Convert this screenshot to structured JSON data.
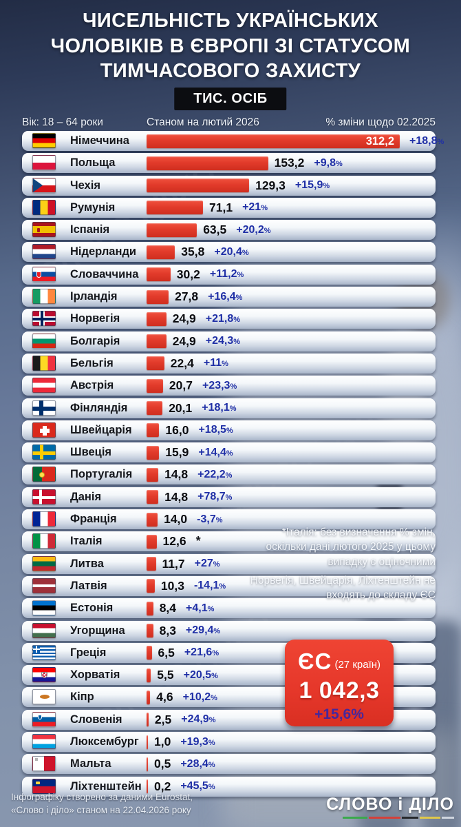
{
  "title": {
    "lines": [
      "ЧИСЕЛЬНІСТЬ УКРАЇНСЬКИХ",
      "ЧОЛОВІКІВ В ЄВРОПІ ЗІ СТАТУСОМ",
      "ТИМЧАСОВОГО ЗАХИСТУ"
    ]
  },
  "units_badge": "ТИС. ОСІБ",
  "column_headers": {
    "age": "Вік: 18 – 64 роки",
    "as_of": "Станом на лютий 2026",
    "change": "% зміни щодо 02.2025"
  },
  "chart_data": {
    "type": "bar",
    "orientation": "horizontal",
    "title": "Чисельність українських чоловіків в Європі зі статусом тимчасового захисту",
    "unit": "тис. осіб",
    "as_of": "лютий 2026",
    "change_vs": "02.2025",
    "rows": [
      {
        "country": "Німеччина",
        "flag": "germany",
        "value": 312.2,
        "value_label": "312,2",
        "change_label": "+18,8%",
        "value_inside": true
      },
      {
        "country": "Польща",
        "flag": "poland",
        "value": 153.2,
        "value_label": "153,2",
        "change_label": "+9,8%"
      },
      {
        "country": "Чехія",
        "flag": "czechia",
        "value": 129.3,
        "value_label": "129,3",
        "change_label": "+15,9%"
      },
      {
        "country": "Румунія",
        "flag": "romania",
        "value": 71.1,
        "value_label": "71,1",
        "change_label": "+21%"
      },
      {
        "country": "Іспанія",
        "flag": "spain",
        "value": 63.5,
        "value_label": "63,5",
        "change_label": "+20,2%"
      },
      {
        "country": "Нідерланди",
        "flag": "netherlands",
        "value": 35.8,
        "value_label": "35,8",
        "change_label": "+20,4%"
      },
      {
        "country": "Словаччина",
        "flag": "slovakia",
        "value": 30.2,
        "value_label": "30,2",
        "change_label": "+11,2%"
      },
      {
        "country": "Ірландія",
        "flag": "ireland",
        "value": 27.8,
        "value_label": "27,8",
        "change_label": "+16,4%"
      },
      {
        "country": "Норвегія",
        "flag": "norway",
        "value": 24.9,
        "value_label": "24,9",
        "change_label": "+21,8%"
      },
      {
        "country": "Болгарія",
        "flag": "bulgaria",
        "value": 24.9,
        "value_label": "24,9",
        "change_label": "+24,3%"
      },
      {
        "country": "Бельгія",
        "flag": "belgium",
        "value": 22.4,
        "value_label": "22,4",
        "change_label": "+11%"
      },
      {
        "country": "Австрія",
        "flag": "austria",
        "value": 20.7,
        "value_label": "20,7",
        "change_label": "+23,3%"
      },
      {
        "country": "Фінляндія",
        "flag": "finland",
        "value": 20.1,
        "value_label": "20,1",
        "change_label": "+18,1%"
      },
      {
        "country": "Швейцарія",
        "flag": "switzerland",
        "value": 16.0,
        "value_label": "16,0",
        "change_label": "+18,5%"
      },
      {
        "country": "Швеція",
        "flag": "sweden",
        "value": 15.9,
        "value_label": "15,9",
        "change_label": "+14,4%"
      },
      {
        "country": "Португалія",
        "flag": "portugal",
        "value": 14.8,
        "value_label": "14,8",
        "change_label": "+22,2%"
      },
      {
        "country": "Данія",
        "flag": "denmark",
        "value": 14.8,
        "value_label": "14,8",
        "change_label": "+78,7%"
      },
      {
        "country": "Франція",
        "flag": "france",
        "value": 14.0,
        "value_label": "14,0",
        "change_label": "-3,7%"
      },
      {
        "country": "Італія",
        "flag": "italy",
        "value": 12.6,
        "value_label": "12,6",
        "change_label": "*"
      },
      {
        "country": "Литва",
        "flag": "lithuania",
        "value": 11.7,
        "value_label": "11,7",
        "change_label": "+27%"
      },
      {
        "country": "Латвія",
        "flag": "latvia",
        "value": 10.3,
        "value_label": "10,3",
        "change_label": "-14,1%"
      },
      {
        "country": "Естонія",
        "flag": "estonia",
        "value": 8.4,
        "value_label": "8,4",
        "change_label": "+4,1%"
      },
      {
        "country": "Угорщина",
        "flag": "hungary",
        "value": 8.3,
        "value_label": "8,3",
        "change_label": "+29,4%"
      },
      {
        "country": "Греція",
        "flag": "greece",
        "value": 6.5,
        "value_label": "6,5",
        "change_label": "+21,6%"
      },
      {
        "country": "Хорватія",
        "flag": "croatia",
        "value": 5.5,
        "value_label": "5,5",
        "change_label": "+20,5%"
      },
      {
        "country": "Кіпр",
        "flag": "cyprus",
        "value": 4.6,
        "value_label": "4,6",
        "change_label": "+10,2%"
      },
      {
        "country": "Словенія",
        "flag": "slovenia",
        "value": 2.5,
        "value_label": "2,5",
        "change_label": "+24,9%"
      },
      {
        "country": "Люксембург",
        "flag": "luxembourg",
        "value": 1.0,
        "value_label": "1,0",
        "change_label": "+19,3%"
      },
      {
        "country": "Мальта",
        "flag": "malta",
        "value": 0.5,
        "value_label": "0,5",
        "change_label": "+28,4%"
      },
      {
        "country": "Ліхтенштейн",
        "flag": "liechtenstein",
        "value": 0.2,
        "value_label": "0,2",
        "change_label": "+45,5%"
      }
    ],
    "eu_total": {
      "label": "ЄС",
      "sublabel": "(27 країн)",
      "value": 1042.3,
      "value_label": "1 042,3",
      "change_label": "+15,6%"
    }
  },
  "notes": {
    "italy_lines": [
      "*Італія: без визначення % змін,",
      "оскільки дані лютого 2025 у цьому",
      "випадку є оціночними"
    ],
    "non_eu_lines": [
      "Норвегія, Швейцарія, Ліхтенштейн не",
      "входять до складу ЄС"
    ]
  },
  "footer": {
    "lines": [
      "Інфографіку створено за даними Eurostat,",
      "«Слово і діло» станом на 22.04.2026 року"
    ]
  },
  "logo": {
    "text": "СЛОВО і ДІЛО"
  },
  "watermark": "СЛОВО і ДІЛО",
  "colors": {
    "bar": "#e23b2b",
    "change_text": "#1f2fa6",
    "eu_box": "#e8382a",
    "eu_change_text": "#45279c",
    "badge_bg": "#0c0d11",
    "row_bg_top": "#ffffff",
    "row_bg_bottom": "#a9b5c9",
    "background_top": "#2d3a58",
    "background_bottom": "#8a98b0"
  }
}
